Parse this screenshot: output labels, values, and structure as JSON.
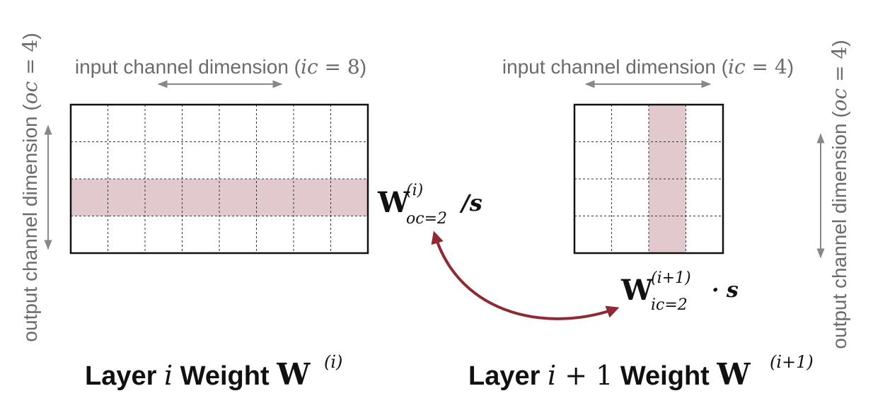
{
  "colors": {
    "highlight": "#e2c9cd",
    "swap_arrow": "#8f2a35",
    "guide_gray": "#888888",
    "label_gray": "#6b6b6b",
    "ink": "#111111"
  },
  "left_matrix": {
    "ic_label_pre": "input channel dimension (",
    "ic_var": "ic",
    "ic_eq": " = 8",
    "ic_label_post": ")",
    "oc_label_pre": "output channel dimension (",
    "oc_var": "oc",
    "oc_eq": " = 4",
    "oc_label_post": ")",
    "rows": 4,
    "cols": 8,
    "highlight_row": 2,
    "side_W": "W",
    "side_sup": "(i)",
    "side_sub": "oc=2",
    "side_op": "/s",
    "caption_text": "Layer ",
    "caption_var": "i",
    "caption_weight": " Weight ",
    "caption_W": "W",
    "caption_sup": "(i)"
  },
  "right_matrix": {
    "ic_label_pre": "input channel dimension (",
    "ic_var": "ic",
    "ic_eq": " = 4",
    "ic_label_post": ")",
    "oc_label_pre": "output channel dimension (",
    "oc_var": "oc",
    "oc_eq": " = 4",
    "oc_label_post": ")",
    "rows": 4,
    "cols": 4,
    "highlight_col": 2,
    "side_W": "W",
    "side_sup": "(i+1)",
    "side_sub": "ic=2",
    "side_op": "· s",
    "caption_text": "Layer ",
    "caption_var": "i",
    "caption_plus": " + 1",
    "caption_weight": " Weight ",
    "caption_W": "W",
    "caption_sup": "(i+1)"
  }
}
